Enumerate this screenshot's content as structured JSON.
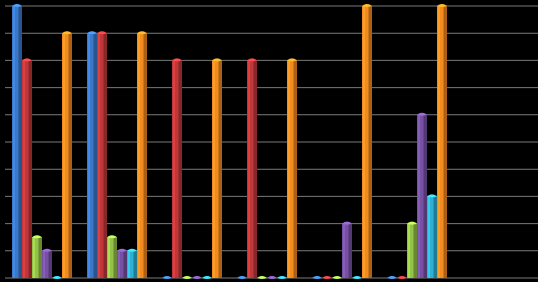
{
  "chart_data": {
    "type": "bar",
    "categories": [
      null,
      null,
      null,
      null,
      null,
      null,
      null
    ],
    "series": [
      {
        "color": "#3a78c9",
        "values": [
          10,
          9,
          0,
          0,
          0,
          0,
          null
        ]
      },
      {
        "color": "#c0373a",
        "values": [
          8,
          9,
          8,
          8,
          0,
          0,
          null
        ]
      },
      {
        "color": "#94c148",
        "values": [
          1.5,
          1.5,
          0,
          0,
          0,
          2,
          null
        ]
      },
      {
        "color": "#7650a3",
        "values": [
          1,
          1,
          0,
          0,
          2,
          6,
          null
        ]
      },
      {
        "color": "#2fb0d3",
        "values": [
          0,
          1,
          0,
          0,
          0,
          3,
          null
        ]
      },
      {
        "color": "#f38b21",
        "values": [
          9,
          9,
          8,
          8,
          10,
          10,
          null
        ]
      }
    ],
    "ylim": [
      0,
      10
    ],
    "yticks": [
      0,
      1,
      2,
      3,
      4,
      5,
      6,
      7,
      8,
      9,
      10
    ],
    "grid": true
  }
}
